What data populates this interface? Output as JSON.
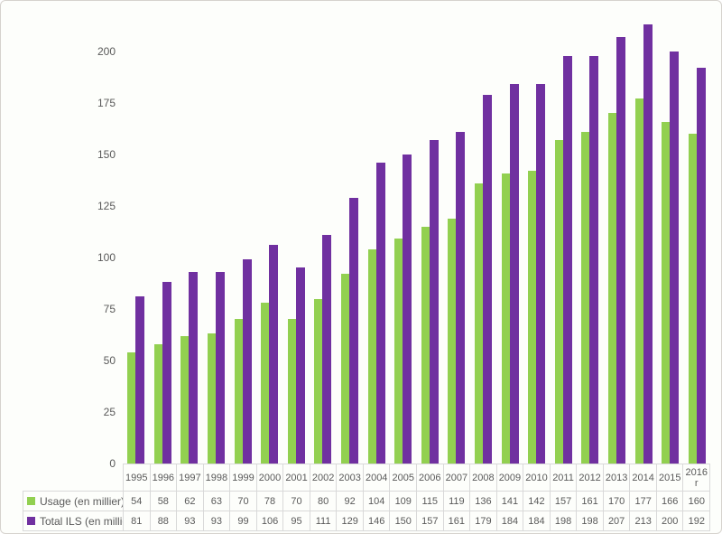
{
  "chart_data": {
    "type": "bar",
    "title": "",
    "xlabel": "",
    "ylabel": "",
    "categories": [
      "1995",
      "1996",
      "1997",
      "1998",
      "1999",
      "2000",
      "2001",
      "2002",
      "2003",
      "2004",
      "2005",
      "2006",
      "2007",
      "2008",
      "2009",
      "2010",
      "2011",
      "2012",
      "2013",
      "2014",
      "2015",
      "2016 r"
    ],
    "series": [
      {
        "name": "Usage (en millier)",
        "color": "#92D050",
        "values": [
          54,
          58,
          62,
          63,
          70,
          78,
          70,
          80,
          92,
          104,
          109,
          115,
          119,
          136,
          141,
          142,
          157,
          161,
          170,
          177,
          166,
          160
        ]
      },
      {
        "name": "Total ILS (en millier)",
        "color": "#7030A0",
        "values": [
          81,
          88,
          93,
          93,
          99,
          106,
          95,
          111,
          129,
          146,
          150,
          157,
          161,
          179,
          184,
          184,
          198,
          198,
          207,
          213,
          200,
          192
        ]
      }
    ],
    "ylim": [
      0,
      225
    ],
    "yticks": [
      0,
      25,
      50,
      75,
      100,
      125,
      150,
      175,
      200
    ],
    "grid": false,
    "legend_position": "table-left",
    "colors": {
      "usage": "#92D050",
      "total_ils": "#7030A0",
      "text": "#595959",
      "table_border": "#d9d9d9",
      "frame_border": "#d6d3ce",
      "background": "#fdfefb"
    }
  }
}
